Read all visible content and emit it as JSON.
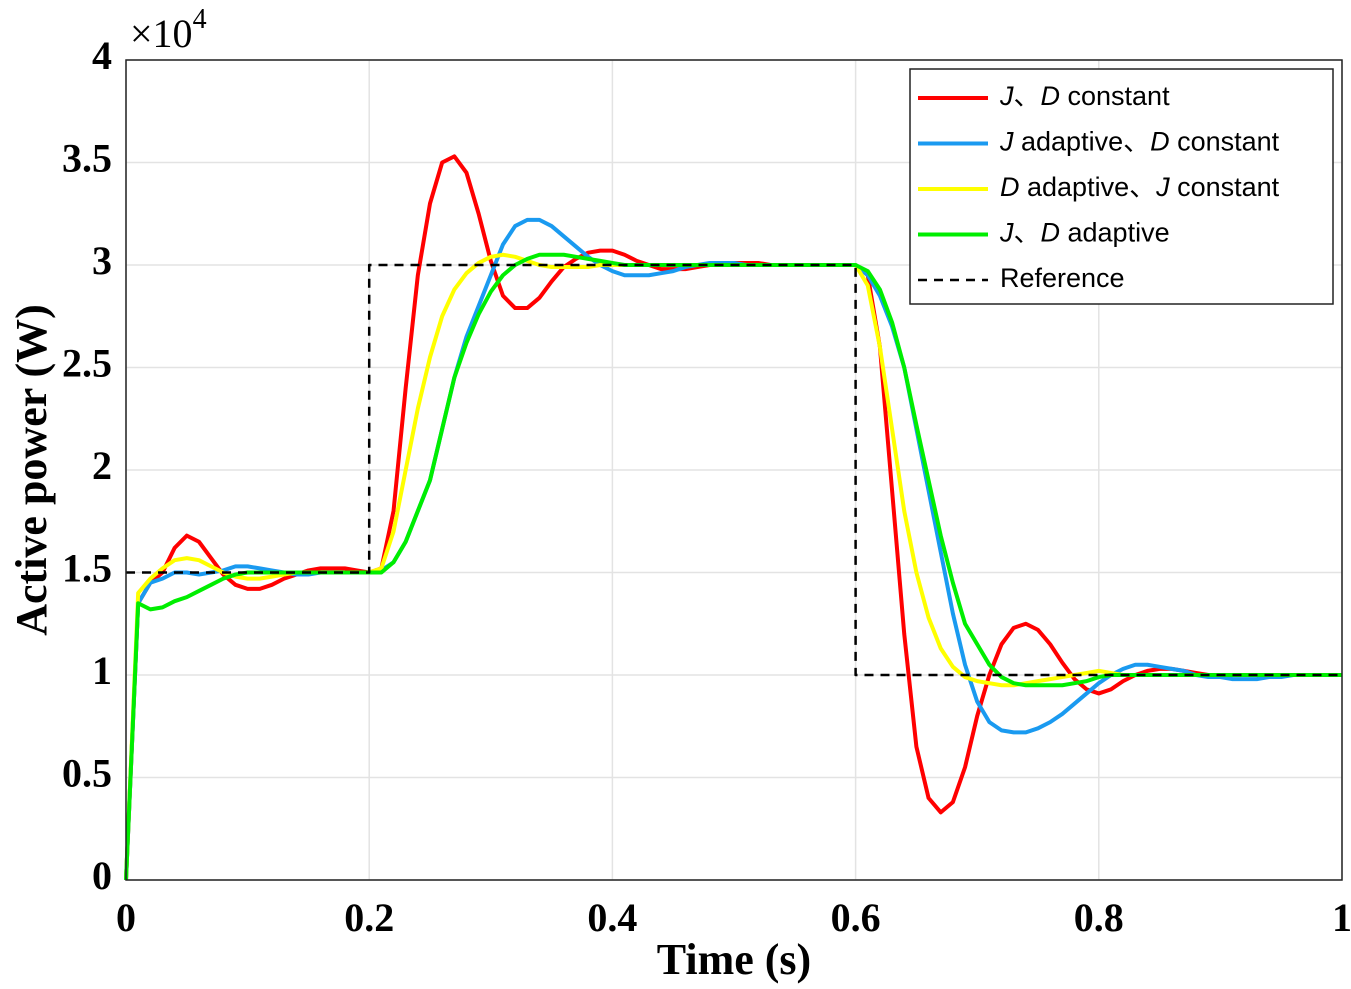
{
  "chart_data": {
    "type": "line",
    "xlabel": "Time (s)",
    "ylabel": "Active power (W)",
    "y_multiplier": {
      "base": "×10",
      "exponent": "4"
    },
    "xlim": [
      0,
      1
    ],
    "xticks": [
      0,
      0.2,
      0.4,
      0.6,
      0.8,
      1
    ],
    "ylim": [
      0,
      4
    ],
    "yticks": [
      0,
      0.5,
      1,
      1.5,
      2,
      2.5,
      3,
      3.5,
      4
    ],
    "grid": true,
    "legend": "upper right",
    "x": [
      0,
      0.01,
      0.02,
      0.03,
      0.04,
      0.05,
      0.06,
      0.07,
      0.08,
      0.09,
      0.1,
      0.11,
      0.12,
      0.13,
      0.14,
      0.15,
      0.16,
      0.17,
      0.18,
      0.19,
      0.2,
      0.21,
      0.22,
      0.23,
      0.24,
      0.25,
      0.26,
      0.27,
      0.28,
      0.29,
      0.3,
      0.31,
      0.32,
      0.33,
      0.34,
      0.35,
      0.36,
      0.37,
      0.38,
      0.39,
      0.4,
      0.41,
      0.42,
      0.43,
      0.44,
      0.45,
      0.46,
      0.47,
      0.48,
      0.49,
      0.5,
      0.51,
      0.52,
      0.53,
      0.54,
      0.55,
      0.56,
      0.57,
      0.58,
      0.59,
      0.6,
      0.61,
      0.62,
      0.63,
      0.64,
      0.65,
      0.66,
      0.67,
      0.68,
      0.69,
      0.7,
      0.71,
      0.72,
      0.73,
      0.74,
      0.75,
      0.76,
      0.77,
      0.78,
      0.79,
      0.8,
      0.81,
      0.82,
      0.83,
      0.84,
      0.85,
      0.86,
      0.87,
      0.88,
      0.89,
      0.9,
      0.91,
      0.92,
      0.93,
      0.94,
      0.95,
      0.96,
      0.97,
      0.98,
      0.99,
      1
    ],
    "series": [
      {
        "name": "J、D constant",
        "color": "#ff0000",
        "values": [
          0,
          1.35,
          1.45,
          1.5,
          1.62,
          1.68,
          1.65,
          1.57,
          1.49,
          1.44,
          1.42,
          1.42,
          1.44,
          1.47,
          1.49,
          1.51,
          1.52,
          1.52,
          1.52,
          1.51,
          1.5,
          1.52,
          1.8,
          2.4,
          2.95,
          3.3,
          3.5,
          3.53,
          3.45,
          3.25,
          3.02,
          2.85,
          2.79,
          2.79,
          2.84,
          2.92,
          2.99,
          3.03,
          3.06,
          3.07,
          3.07,
          3.05,
          3.02,
          3,
          2.98,
          2.98,
          2.98,
          2.99,
          3,
          3,
          3.01,
          3.01,
          3.01,
          3,
          3,
          3,
          3,
          3,
          3,
          3,
          3,
          2.95,
          2.6,
          1.9,
          1.2,
          0.65,
          0.4,
          0.33,
          0.38,
          0.55,
          0.8,
          1,
          1.15,
          1.23,
          1.25,
          1.22,
          1.15,
          1.06,
          0.98,
          0.93,
          0.91,
          0.93,
          0.97,
          1,
          1.02,
          1.03,
          1.03,
          1.02,
          1.01,
          1,
          1,
          1,
          1,
          1,
          1,
          1,
          1,
          1,
          1,
          1,
          1
        ]
      },
      {
        "name": "J adaptive、D constant",
        "color": "#1a9af0",
        "values": [
          0,
          1.35,
          1.45,
          1.47,
          1.5,
          1.5,
          1.49,
          1.5,
          1.51,
          1.53,
          1.53,
          1.52,
          1.51,
          1.5,
          1.49,
          1.49,
          1.5,
          1.5,
          1.5,
          1.5,
          1.5,
          1.51,
          1.55,
          1.65,
          1.8,
          1.95,
          2.2,
          2.45,
          2.65,
          2.8,
          2.95,
          3.1,
          3.19,
          3.22,
          3.22,
          3.19,
          3.14,
          3.09,
          3.04,
          3,
          2.97,
          2.95,
          2.95,
          2.95,
          2.96,
          2.97,
          2.99,
          3,
          3.01,
          3.01,
          3.01,
          3,
          3,
          3,
          3,
          3,
          3,
          3,
          3,
          3,
          3,
          2.95,
          2.85,
          2.7,
          2.5,
          2.2,
          1.9,
          1.6,
          1.3,
          1.05,
          0.87,
          0.77,
          0.73,
          0.72,
          0.72,
          0.74,
          0.77,
          0.81,
          0.86,
          0.91,
          0.96,
          1,
          1.03,
          1.05,
          1.05,
          1.04,
          1.03,
          1.02,
          1,
          0.99,
          0.99,
          0.98,
          0.98,
          0.98,
          0.99,
          0.99,
          1,
          1,
          1,
          1,
          1
        ]
      },
      {
        "name": "D adaptive、J constant",
        "color": "#ffff00",
        "values": [
          0,
          1.4,
          1.47,
          1.52,
          1.56,
          1.57,
          1.56,
          1.53,
          1.5,
          1.48,
          1.47,
          1.47,
          1.48,
          1.49,
          1.5,
          1.5,
          1.5,
          1.5,
          1.5,
          1.5,
          1.5,
          1.52,
          1.7,
          2,
          2.3,
          2.55,
          2.75,
          2.88,
          2.96,
          3.01,
          3.04,
          3.05,
          3.04,
          3.02,
          3,
          2.99,
          2.99,
          2.99,
          2.99,
          3,
          3,
          3,
          3,
          3,
          3,
          3,
          3,
          3,
          3,
          3,
          3,
          3,
          3,
          3,
          3,
          3,
          3,
          3,
          3,
          3,
          3,
          2.9,
          2.6,
          2.2,
          1.8,
          1.5,
          1.28,
          1.13,
          1.04,
          0.99,
          0.97,
          0.96,
          0.95,
          0.95,
          0.96,
          0.97,
          0.98,
          0.99,
          1,
          1.01,
          1.02,
          1.01,
          1,
          1,
          1,
          1,
          1,
          1,
          1,
          1,
          1,
          1,
          1,
          1,
          1,
          1,
          1,
          1,
          1,
          1,
          1
        ]
      },
      {
        "name": "J、D adaptive",
        "color": "#00ee00",
        "values": [
          0,
          1.35,
          1.32,
          1.33,
          1.36,
          1.38,
          1.41,
          1.44,
          1.47,
          1.49,
          1.5,
          1.5,
          1.5,
          1.5,
          1.5,
          1.5,
          1.5,
          1.5,
          1.5,
          1.5,
          1.5,
          1.5,
          1.55,
          1.65,
          1.8,
          1.95,
          2.2,
          2.45,
          2.62,
          2.76,
          2.87,
          2.95,
          3,
          3.03,
          3.05,
          3.05,
          3.05,
          3.04,
          3.03,
          3.02,
          3.01,
          3,
          3,
          3,
          3,
          3,
          3,
          3,
          3,
          3,
          3,
          3,
          3,
          3,
          3,
          3,
          3,
          3,
          3,
          3,
          3,
          2.97,
          2.88,
          2.72,
          2.5,
          2.22,
          1.95,
          1.68,
          1.45,
          1.25,
          1.15,
          1.05,
          0.99,
          0.96,
          0.95,
          0.95,
          0.95,
          0.95,
          0.96,
          0.97,
          0.99,
          1,
          1,
          1,
          1,
          1,
          1,
          1,
          1,
          1,
          1,
          1,
          1,
          1,
          1,
          1,
          1,
          1,
          1,
          1,
          1
        ]
      },
      {
        "name": "Reference",
        "color": "#000000",
        "dashed": true,
        "x": [
          0,
          0.2,
          0.2,
          0.6,
          0.6,
          1
        ],
        "values": [
          1.5,
          1.5,
          3,
          3,
          1,
          1
        ]
      }
    ]
  }
}
